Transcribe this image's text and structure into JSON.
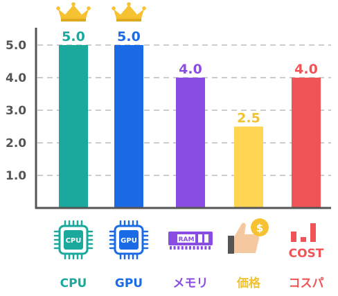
{
  "chart_data": {
    "type": "bar",
    "categories": [
      "CPU",
      "GPU",
      "メモリ",
      "価格",
      "コスパ"
    ],
    "values": [
      5.0,
      5.0,
      4.0,
      2.5,
      4.0
    ],
    "value_labels": [
      "5.0",
      "5.0",
      "4.0",
      "2.5",
      "4.0"
    ],
    "colors": [
      "#1aa99c",
      "#1b6be6",
      "#8a4de3",
      "#ffd553",
      "#f05457"
    ],
    "label_colors": [
      "#1aa99c",
      "#1b6be6",
      "#8a4de3",
      "#f2c230",
      "#f05457"
    ],
    "ylim": [
      0,
      5.4
    ],
    "yticks": [
      1.0,
      2.0,
      3.0,
      4.0,
      5.0
    ],
    "ytick_labels": [
      "1.0",
      "2.0",
      "3.0",
      "4.0",
      "5.0"
    ],
    "grid": true,
    "crowned": [
      true,
      true,
      false,
      false,
      false
    ],
    "icons": [
      {
        "name": "cpu-chip-icon",
        "text": "CPU"
      },
      {
        "name": "gpu-chip-icon",
        "text": "GPU"
      },
      {
        "name": "ram-module-icon",
        "text": "RAM"
      },
      {
        "name": "thumbs-up-coin-icon",
        "text": "$"
      },
      {
        "name": "cost-bars-icon",
        "text": "COST"
      }
    ]
  }
}
